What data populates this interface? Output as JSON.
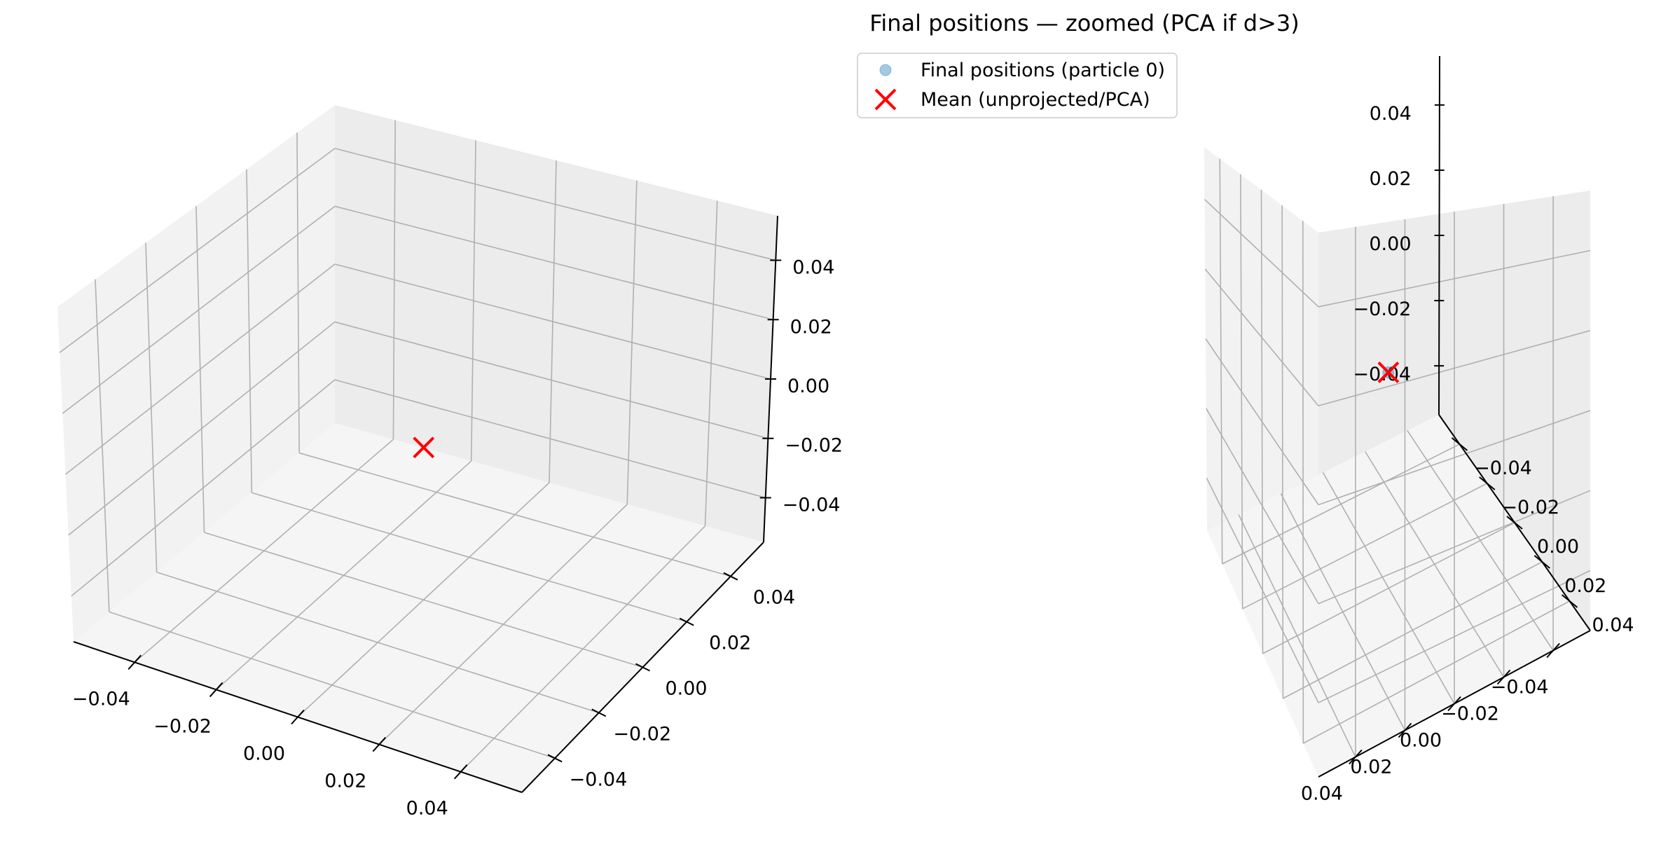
{
  "chart_data": [
    {
      "type": "scatter",
      "projection": "3d",
      "title": "",
      "xlabel": "",
      "ylabel": "",
      "zlabel": "",
      "xlim": [
        -0.055,
        0.055
      ],
      "ylim": [
        -0.055,
        0.055
      ],
      "zlim": [
        -0.055,
        0.055
      ],
      "x_ticks": [
        "−0.04",
        "−0.02",
        "0.00",
        "0.02",
        "0.04"
      ],
      "y_ticks": [
        "−0.04",
        "−0.02",
        "0.00",
        "0.02",
        "0.04"
      ],
      "z_ticks": [
        "−0.04",
        "−0.02",
        "0.00",
        "0.02",
        "0.04"
      ],
      "grid": true,
      "series": [
        {
          "marker": "x",
          "color": "#ff0000",
          "points": [
            [
              0,
              0,
              0
            ]
          ]
        }
      ]
    },
    {
      "type": "scatter",
      "projection": "3d",
      "title": "Final positions — zoomed (PCA if d>3)",
      "xlabel": "",
      "ylabel": "",
      "zlabel": "",
      "xlim": [
        -0.055,
        0.055
      ],
      "ylim": [
        -0.055,
        0.055
      ],
      "zlim": [
        -0.055,
        0.055
      ],
      "x_ticks": [
        "−0.04",
        "−0.02",
        "0.00",
        "0.02",
        "0.04"
      ],
      "y_ticks": [
        "−0.04",
        "−0.02",
        "0.00",
        "0.02",
        "0.04"
      ],
      "z_ticks": [
        "−0.04",
        "−0.02",
        "0.00",
        "0.02",
        "0.04"
      ],
      "grid": true,
      "legend_position": "top-left",
      "series": [
        {
          "name": "Final positions (particle 0)",
          "marker": "o",
          "color": "#1f77b4",
          "alpha": 0.4,
          "points": [
            [
              0,
              0,
              0
            ]
          ]
        },
        {
          "name": "Mean (unprojected/PCA)",
          "marker": "x",
          "color": "#ff0000",
          "points": [
            [
              0,
              0,
              0
            ]
          ]
        }
      ]
    }
  ]
}
